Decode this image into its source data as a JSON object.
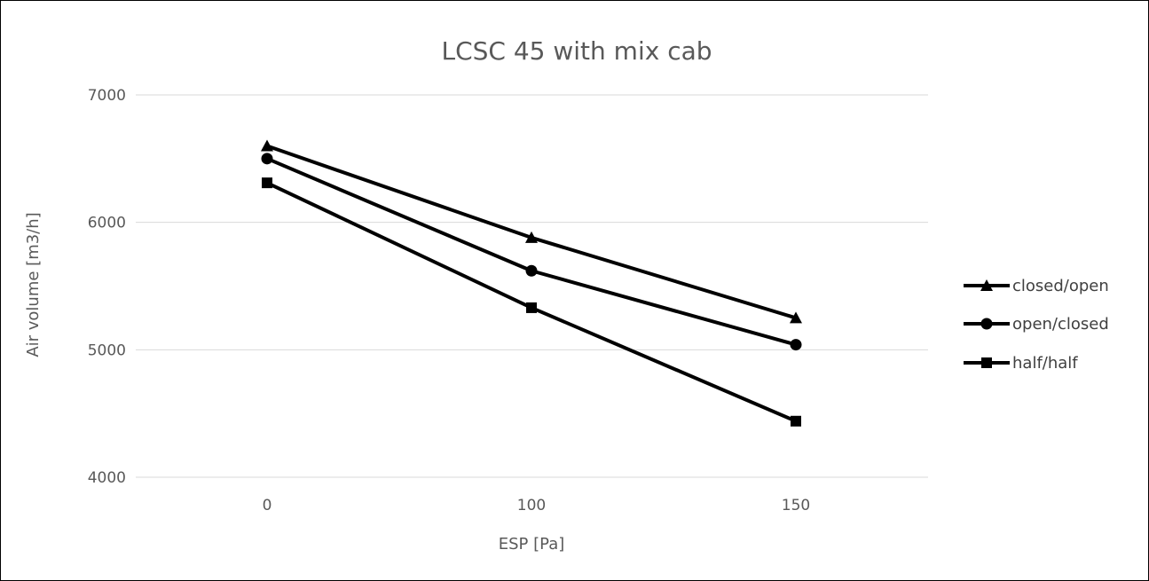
{
  "chart_data": {
    "type": "line",
    "title": "LCSC 45 with mix cab",
    "xlabel": "ESP [Pa]",
    "ylabel": "Air volume [m3/h]",
    "categories": [
      "0",
      "100",
      "150"
    ],
    "ylim": [
      4000,
      7000
    ],
    "yticks": [
      4000,
      5000,
      6000,
      7000
    ],
    "yticks_labels": [
      "4000",
      "5000",
      "6000",
      "7000"
    ],
    "grid": true,
    "legend_position": "right",
    "line_color": "#000000",
    "grid_color": "#d9d9d9",
    "series": [
      {
        "name": "closed/open",
        "marker": "triangle",
        "values": [
          6600,
          5880,
          5250
        ]
      },
      {
        "name": "open/closed",
        "marker": "circle",
        "values": [
          6500,
          5620,
          5040
        ]
      },
      {
        "name": "half/half",
        "marker": "square",
        "values": [
          6310,
          5330,
          4440
        ]
      }
    ]
  }
}
